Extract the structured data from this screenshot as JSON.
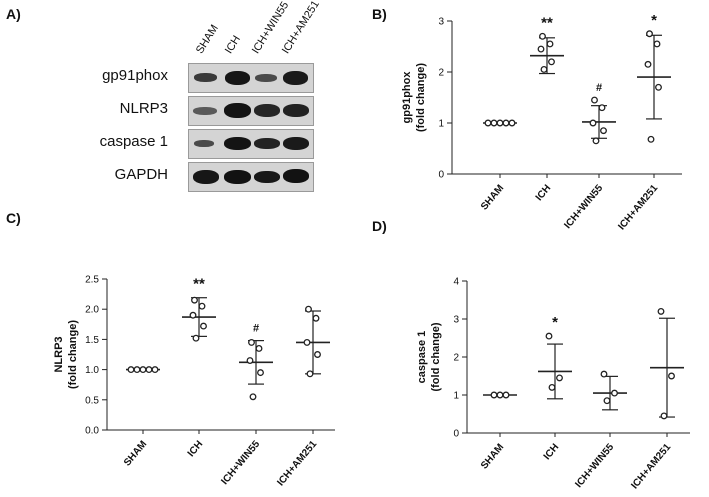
{
  "panels": {
    "A": "A)",
    "B": "B)",
    "C": "C)",
    "D": "D)"
  },
  "western_blot": {
    "lanes": [
      "SHAM",
      "ICH",
      "ICH+WIN55",
      "ICH+AM251"
    ],
    "rows": [
      {
        "label": "gp91phox"
      },
      {
        "label": "NLRP3"
      },
      {
        "label": "caspase 1"
      },
      {
        "label": "GAPDH"
      }
    ]
  },
  "chart_data": [
    {
      "id": "B",
      "type": "scatter",
      "title": "",
      "xlabel": "",
      "ylabel": [
        "gp91phox",
        "(fold change)"
      ],
      "categories": [
        "SHAM",
        "ICH",
        "ICH+WIN55",
        "ICH+AM251"
      ],
      "ylim": [
        0,
        3
      ],
      "yticks": [
        "0",
        "1",
        "2",
        "3"
      ],
      "points": [
        [
          1.0,
          1.0,
          1.0,
          1.0,
          1.0
        ],
        [
          2.05,
          2.2,
          2.45,
          2.55,
          2.7
        ],
        [
          0.65,
          0.85,
          1.0,
          1.3,
          1.45
        ],
        [
          0.68,
          1.7,
          2.15,
          2.55,
          2.75
        ]
      ],
      "mean": [
        1.0,
        2.32,
        1.02,
        1.9
      ],
      "sd": [
        0.0,
        0.35,
        0.32,
        0.82
      ],
      "significance": [
        "",
        "**",
        "#",
        "*"
      ],
      "grid": false
    },
    {
      "id": "C",
      "type": "scatter",
      "title": "",
      "xlabel": "",
      "ylabel": [
        "NLRP3",
        "(fold change)"
      ],
      "categories": [
        "SHAM",
        "ICH",
        "ICH+WIN55",
        "ICH+AM251"
      ],
      "ylim": [
        0,
        2.5
      ],
      "yticks": [
        "0.0",
        "0.5",
        "1.0",
        "1.5",
        "2.0",
        "2.5"
      ],
      "points": [
        [
          1.0,
          1.0,
          1.0,
          1.0,
          1.0
        ],
        [
          1.52,
          1.72,
          1.9,
          2.05,
          2.15
        ],
        [
          0.55,
          0.95,
          1.15,
          1.35,
          1.45
        ],
        [
          0.93,
          1.25,
          1.45,
          1.85,
          2.0
        ]
      ],
      "mean": [
        1.0,
        1.87,
        1.12,
        1.45
      ],
      "sd": [
        0.0,
        0.32,
        0.36,
        0.52
      ],
      "significance": [
        "",
        "**",
        "#",
        ""
      ],
      "grid": false
    },
    {
      "id": "D",
      "type": "scatter",
      "title": "",
      "xlabel": "",
      "ylabel": [
        "caspase 1",
        "(fold change)"
      ],
      "categories": [
        "SHAM",
        "ICH",
        "ICH+WIN55",
        "ICH+AM251"
      ],
      "ylim": [
        0,
        4
      ],
      "yticks": [
        "0",
        "1",
        "2",
        "3",
        "4"
      ],
      "points": [
        [
          1.0,
          1.0,
          1.0
        ],
        [
          1.2,
          1.45,
          2.55
        ],
        [
          0.85,
          1.05,
          1.55
        ],
        [
          0.45,
          1.5,
          3.2
        ]
      ],
      "mean": [
        1.0,
        1.62,
        1.05,
        1.72
      ],
      "sd": [
        0.0,
        0.72,
        0.44,
        1.3
      ],
      "significance": [
        "",
        "*",
        "",
        ""
      ],
      "grid": false
    }
  ]
}
